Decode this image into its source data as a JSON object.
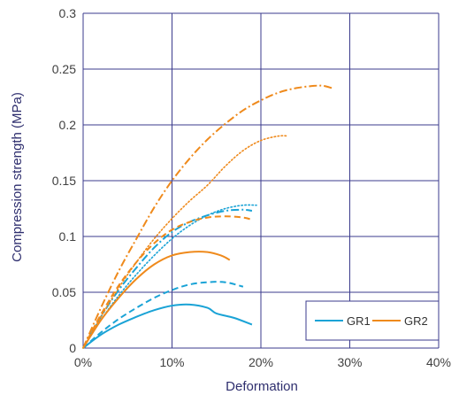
{
  "chart_data": {
    "type": "line",
    "xlabel": "Deformation",
    "ylabel": "Compression strength (MPa)",
    "xlim": [
      0,
      0.4
    ],
    "ylim": [
      0,
      0.3
    ],
    "x_ticks": [
      "0%",
      "10%",
      "20%",
      "30%",
      "40%"
    ],
    "y_ticks": [
      "0",
      "0.05",
      "0.1",
      "0.15",
      "0.2",
      "0.25",
      "0.3"
    ],
    "grid": true,
    "legend_position": "bottom-right",
    "legend": [
      "GR1",
      "GR2"
    ],
    "colors": {
      "GR1": "#1aa3d6",
      "GR2": "#ef8a1c",
      "grid": "#3b3b8c",
      "axis_text": "#404040",
      "axis_title": "#2e2e6e"
    },
    "series": [
      {
        "group": "GR1",
        "style": "solid",
        "color": "#1aa3d6",
        "x": [
          0,
          0.02,
          0.04,
          0.06,
          0.08,
          0.1,
          0.12,
          0.14,
          0.15,
          0.17,
          0.19
        ],
        "y": [
          0,
          0.012,
          0.021,
          0.028,
          0.034,
          0.038,
          0.039,
          0.036,
          0.031,
          0.027,
          0.021
        ]
      },
      {
        "group": "GR1",
        "style": "dashed",
        "color": "#1aa3d6",
        "x": [
          0,
          0.02,
          0.04,
          0.06,
          0.08,
          0.1,
          0.12,
          0.14,
          0.16,
          0.18
        ],
        "y": [
          0,
          0.014,
          0.026,
          0.036,
          0.045,
          0.052,
          0.057,
          0.059,
          0.059,
          0.055
        ]
      },
      {
        "group": "GR1",
        "style": "dash-dot",
        "color": "#1aa3d6",
        "x": [
          0,
          0.02,
          0.04,
          0.06,
          0.08,
          0.1,
          0.12,
          0.14,
          0.16,
          0.18,
          0.19
        ],
        "y": [
          0,
          0.028,
          0.052,
          0.072,
          0.09,
          0.104,
          0.113,
          0.119,
          0.123,
          0.124,
          0.123
        ]
      },
      {
        "group": "GR1",
        "style": "dotted",
        "color": "#1aa3d6",
        "x": [
          0,
          0.02,
          0.04,
          0.06,
          0.08,
          0.1,
          0.12,
          0.14,
          0.16,
          0.18,
          0.195
        ],
        "y": [
          0,
          0.025,
          0.047,
          0.066,
          0.083,
          0.098,
          0.11,
          0.119,
          0.125,
          0.128,
          0.128
        ]
      },
      {
        "group": "GR2",
        "style": "solid",
        "color": "#ef8a1c",
        "x": [
          0,
          0.02,
          0.04,
          0.06,
          0.08,
          0.1,
          0.12,
          0.14,
          0.155,
          0.165
        ],
        "y": [
          0,
          0.025,
          0.045,
          0.062,
          0.075,
          0.083,
          0.086,
          0.086,
          0.083,
          0.079
        ]
      },
      {
        "group": "GR2",
        "style": "dashed",
        "color": "#ef8a1c",
        "x": [
          0,
          0.02,
          0.04,
          0.06,
          0.08,
          0.1,
          0.12,
          0.14,
          0.16,
          0.18,
          0.19
        ],
        "y": [
          0,
          0.03,
          0.056,
          0.077,
          0.094,
          0.106,
          0.113,
          0.117,
          0.118,
          0.117,
          0.115
        ]
      },
      {
        "group": "GR2",
        "style": "dash-dot",
        "color": "#ef8a1c",
        "x": [
          0,
          0.02,
          0.04,
          0.06,
          0.08,
          0.1,
          0.12,
          0.14,
          0.16,
          0.18,
          0.2,
          0.22,
          0.24,
          0.26,
          0.27,
          0.28
        ],
        "y": [
          0,
          0.036,
          0.069,
          0.098,
          0.126,
          0.15,
          0.17,
          0.187,
          0.201,
          0.213,
          0.222,
          0.229,
          0.233,
          0.235,
          0.235,
          0.233
        ]
      },
      {
        "group": "GR2",
        "style": "dotted",
        "color": "#ef8a1c",
        "x": [
          0,
          0.02,
          0.04,
          0.06,
          0.08,
          0.1,
          0.12,
          0.14,
          0.16,
          0.18,
          0.2,
          0.22,
          0.23
        ],
        "y": [
          0,
          0.028,
          0.054,
          0.077,
          0.098,
          0.116,
          0.132,
          0.146,
          0.163,
          0.177,
          0.186,
          0.19,
          0.19
        ]
      }
    ]
  }
}
